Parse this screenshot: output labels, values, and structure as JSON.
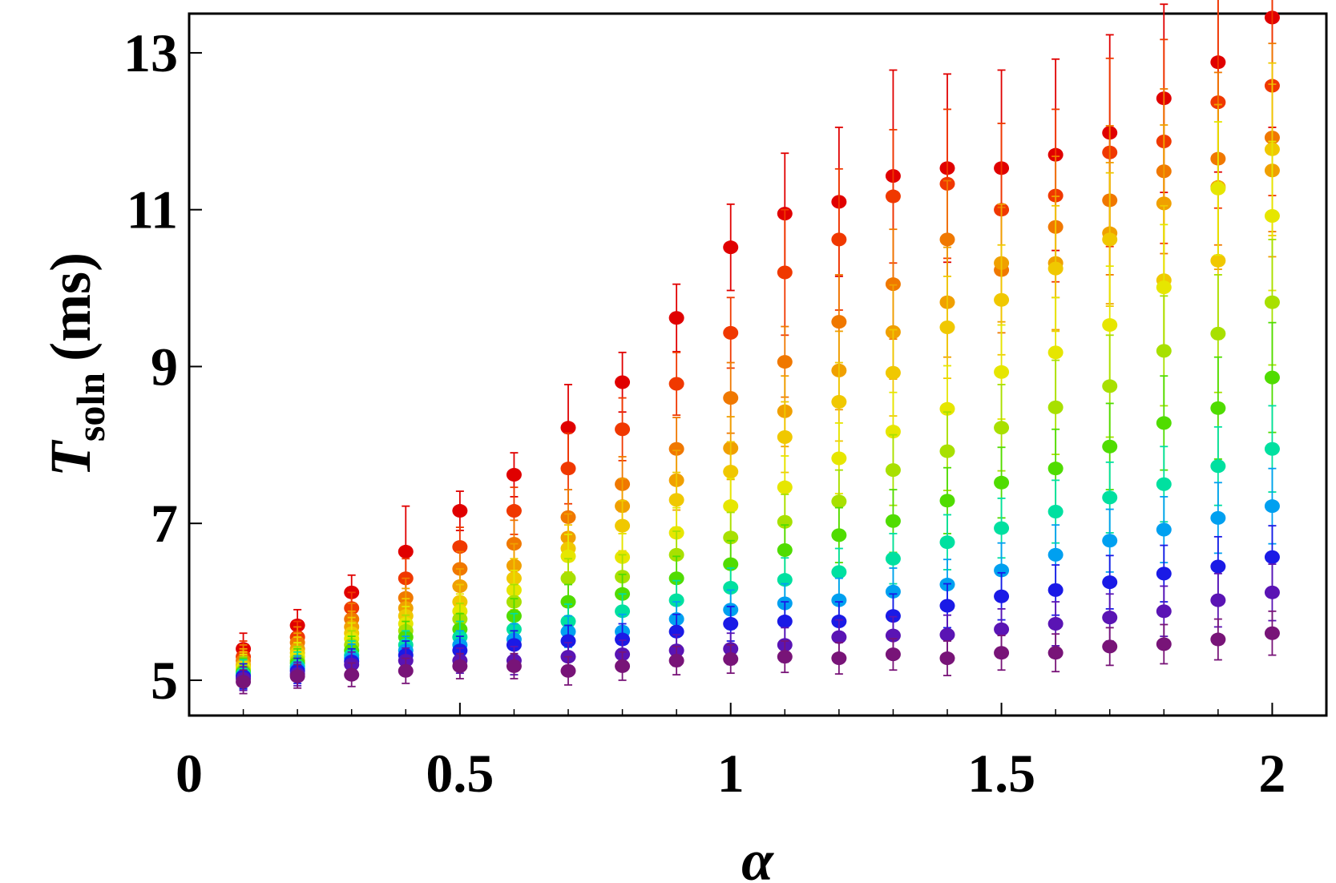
{
  "chart_data": {
    "type": "scatter",
    "title": "",
    "xlabel": "α",
    "ylabel": {
      "main": "T",
      "subscript": "soln",
      "unit": "(ms)"
    },
    "xlim": [
      0,
      2.1
    ],
    "ylim": [
      4.55,
      13.5
    ],
    "xticks": [
      0,
      0.5,
      1,
      1.5,
      2
    ],
    "xtick_labels": [
      "0",
      "0.5",
      "1",
      "1.5",
      "2"
    ],
    "yticks": [
      5,
      7,
      9,
      11,
      13
    ],
    "ytick_labels": [
      "5",
      "7",
      "9",
      "11",
      "13"
    ],
    "minor_xticks": [
      0.1,
      0.2,
      0.3,
      0.4,
      0.6,
      0.7,
      0.8,
      0.9,
      1.1,
      1.2,
      1.3,
      1.4,
      1.6,
      1.7,
      1.8,
      1.9
    ],
    "grid": false,
    "error_bars": true,
    "x": [
      0.1,
      0.2,
      0.3,
      0.4,
      0.5,
      0.6,
      0.7,
      0.8,
      0.9,
      1.0,
      1.1,
      1.2,
      1.3,
      1.4,
      1.5,
      1.6,
      1.7,
      1.8,
      1.9,
      2.0
    ],
    "series": [
      {
        "color": "#e00000",
        "values": [
          5.4,
          5.7,
          6.12,
          6.64,
          7.16,
          7.62,
          8.22,
          8.8,
          9.62,
          10.52,
          10.95,
          11.1,
          11.43,
          11.53,
          11.53,
          11.7,
          11.98,
          12.42,
          12.88,
          13.45
        ],
        "errors": [
          0.2,
          0.2,
          0.22,
          0.58,
          0.25,
          0.28,
          0.55,
          0.38,
          0.43,
          0.55,
          0.77,
          0.95,
          1.35,
          1.2,
          1.25,
          1.22,
          1.25,
          1.2,
          1.4,
          1.4
        ]
      },
      {
        "color": "#f03800",
        "values": [
          5.3,
          5.55,
          5.92,
          6.3,
          6.7,
          7.16,
          7.7,
          8.2,
          8.78,
          9.43,
          10.2,
          10.62,
          11.17,
          11.33,
          11.0,
          11.18,
          11.73,
          11.87,
          12.37,
          12.58
        ],
        "errors": [
          0.2,
          0.2,
          0.2,
          0.25,
          0.25,
          0.3,
          0.45,
          0.4,
          0.4,
          0.45,
          0.8,
          0.9,
          0.85,
          0.95,
          1.1,
          1.1,
          1.2,
          1.3,
          1.35,
          1.4
        ]
      },
      {
        "color": "#f07800",
        "values": [
          5.25,
          5.48,
          5.78,
          6.05,
          6.42,
          6.74,
          7.08,
          7.5,
          7.95,
          8.6,
          9.06,
          9.57,
          10.05,
          10.62,
          10.23,
          10.78,
          11.12,
          11.49,
          11.65,
          11.92
        ],
        "errors": [
          0.2,
          0.2,
          0.2,
          0.25,
          0.22,
          0.3,
          0.35,
          0.35,
          0.4,
          0.45,
          0.45,
          0.6,
          0.7,
          0.75,
          0.8,
          0.9,
          0.95,
          1.05,
          1.1,
          1.2
        ]
      },
      {
        "color": "#f0a000",
        "values": [
          5.2,
          5.4,
          5.68,
          5.92,
          6.2,
          6.46,
          6.82,
          7.22,
          7.55,
          7.96,
          8.43,
          8.95,
          9.44,
          9.82,
          10.32,
          10.32,
          10.7,
          11.08,
          11.29,
          11.5
        ],
        "errors": [
          0.2,
          0.2,
          0.2,
          0.25,
          0.22,
          0.28,
          0.3,
          0.35,
          0.38,
          0.4,
          0.45,
          0.5,
          0.6,
          0.7,
          0.75,
          0.85,
          0.9,
          1.0,
          1.05,
          1.1
        ]
      },
      {
        "color": "#f0c800",
        "values": [
          5.18,
          5.35,
          5.6,
          5.82,
          6.0,
          6.3,
          6.68,
          6.97,
          7.3,
          7.66,
          8.1,
          8.55,
          8.92,
          9.5,
          9.85,
          10.25,
          10.62,
          10.1,
          10.35,
          11.77
        ],
        "errors": [
          0.18,
          0.2,
          0.2,
          0.22,
          0.22,
          0.25,
          0.3,
          0.32,
          0.35,
          0.38,
          0.45,
          0.5,
          0.55,
          0.65,
          0.7,
          0.8,
          0.85,
          0.95,
          1.0,
          1.1
        ]
      },
      {
        "color": "#e6e600",
        "values": [
          5.15,
          5.3,
          5.53,
          5.72,
          5.88,
          6.15,
          6.58,
          6.57,
          6.88,
          7.22,
          7.46,
          7.83,
          8.17,
          8.46,
          8.93,
          9.18,
          9.53,
          10.01,
          11.27,
          10.92
        ],
        "errors": [
          0.18,
          0.18,
          0.2,
          0.22,
          0.22,
          0.25,
          0.28,
          0.3,
          0.32,
          0.35,
          0.4,
          0.45,
          0.5,
          0.55,
          0.6,
          0.7,
          0.75,
          0.8,
          0.85,
          0.95
        ]
      },
      {
        "color": "#a8e000",
        "values": [
          5.12,
          5.25,
          5.45,
          5.63,
          5.78,
          6.0,
          6.3,
          6.32,
          6.6,
          6.82,
          7.02,
          7.28,
          7.68,
          7.92,
          8.22,
          8.48,
          8.75,
          9.2,
          9.42,
          9.82
        ],
        "errors": [
          0.18,
          0.18,
          0.18,
          0.2,
          0.2,
          0.22,
          0.25,
          0.28,
          0.3,
          0.32,
          0.35,
          0.4,
          0.45,
          0.5,
          0.55,
          0.6,
          0.65,
          0.7,
          0.75,
          0.8
        ]
      },
      {
        "color": "#50dc00",
        "values": [
          5.1,
          5.22,
          5.38,
          5.55,
          5.65,
          5.82,
          6.0,
          6.1,
          6.3,
          6.48,
          6.66,
          6.85,
          7.03,
          7.29,
          7.52,
          7.7,
          7.98,
          8.28,
          8.47,
          8.86
        ],
        "errors": [
          0.18,
          0.18,
          0.18,
          0.2,
          0.2,
          0.22,
          0.22,
          0.25,
          0.28,
          0.3,
          0.32,
          0.35,
          0.4,
          0.42,
          0.45,
          0.5,
          0.55,
          0.6,
          0.65,
          0.7
        ]
      },
      {
        "color": "#00e0a0",
        "values": [
          5.08,
          5.18,
          5.32,
          5.45,
          5.55,
          5.65,
          5.75,
          5.88,
          6.02,
          6.18,
          6.28,
          6.38,
          6.55,
          6.76,
          6.94,
          7.15,
          7.33,
          7.5,
          7.73,
          7.95
        ],
        "errors": [
          0.18,
          0.18,
          0.18,
          0.18,
          0.2,
          0.2,
          0.22,
          0.22,
          0.25,
          0.25,
          0.28,
          0.3,
          0.32,
          0.35,
          0.38,
          0.4,
          0.45,
          0.48,
          0.5,
          0.55
        ]
      },
      {
        "color": "#00a0f0",
        "values": [
          5.05,
          5.15,
          5.28,
          5.38,
          5.45,
          5.52,
          5.62,
          5.62,
          5.78,
          5.9,
          5.98,
          6.02,
          6.13,
          6.22,
          6.4,
          6.6,
          6.78,
          6.92,
          7.07,
          7.22
        ],
        "errors": [
          0.16,
          0.16,
          0.18,
          0.18,
          0.18,
          0.2,
          0.2,
          0.22,
          0.22,
          0.25,
          0.25,
          0.28,
          0.3,
          0.32,
          0.35,
          0.38,
          0.4,
          0.42,
          0.45,
          0.48
        ]
      },
      {
        "color": "#1a1ae6",
        "values": [
          5.05,
          5.12,
          5.24,
          5.32,
          5.38,
          5.45,
          5.5,
          5.52,
          5.62,
          5.72,
          5.75,
          5.75,
          5.82,
          5.95,
          6.07,
          6.15,
          6.25,
          6.36,
          6.45,
          6.57
        ],
        "errors": [
          0.16,
          0.16,
          0.16,
          0.18,
          0.18,
          0.18,
          0.2,
          0.2,
          0.22,
          0.22,
          0.25,
          0.25,
          0.28,
          0.28,
          0.3,
          0.32,
          0.34,
          0.36,
          0.38,
          0.4
        ]
      },
      {
        "color": "#5a14b4",
        "values": [
          5.02,
          5.08,
          5.2,
          5.25,
          5.25,
          5.25,
          5.3,
          5.33,
          5.38,
          5.4,
          5.45,
          5.55,
          5.57,
          5.58,
          5.65,
          5.72,
          5.8,
          5.88,
          6.02,
          6.12
        ],
        "errors": [
          0.15,
          0.15,
          0.16,
          0.16,
          0.16,
          0.18,
          0.18,
          0.18,
          0.2,
          0.2,
          0.22,
          0.22,
          0.24,
          0.25,
          0.26,
          0.28,
          0.3,
          0.32,
          0.34,
          0.36
        ]
      },
      {
        "color": "#781478",
        "values": [
          4.98,
          5.05,
          5.07,
          5.12,
          5.18,
          5.18,
          5.12,
          5.18,
          5.25,
          5.27,
          5.3,
          5.28,
          5.33,
          5.28,
          5.35,
          5.35,
          5.43,
          5.46,
          5.52,
          5.6
        ],
        "errors": [
          0.15,
          0.15,
          0.15,
          0.16,
          0.16,
          0.16,
          0.18,
          0.18,
          0.18,
          0.18,
          0.2,
          0.2,
          0.2,
          0.22,
          0.22,
          0.24,
          0.24,
          0.25,
          0.26,
          0.28
        ]
      }
    ]
  }
}
